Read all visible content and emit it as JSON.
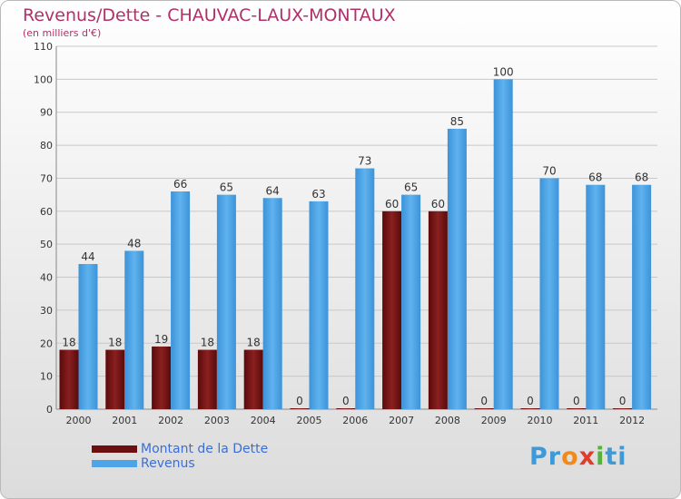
{
  "title": "Revenus/Dette - CHAUVAC-LAUX-MONTAUX",
  "subtitle": "(en milliers d'€)",
  "colors": {
    "title": "#b0306a",
    "debt": "#7a1616",
    "revenue": "#4da4e6",
    "legend_text": "#3b6ed6"
  },
  "logo": {
    "text": "Proxiti",
    "letters": [
      "P",
      "r",
      "o",
      "x",
      "i",
      "t",
      "i"
    ],
    "colors": [
      "#3d9ad6",
      "#3d9ad6",
      "#f08a1c",
      "#e23b2b",
      "#56b23a",
      "#3d9ad6",
      "#3d9ad6"
    ]
  },
  "legend": {
    "position": "bottom-left",
    "items": [
      {
        "label": "Montant de la Dette",
        "color": "#6b0f0f"
      },
      {
        "label": "Revenus",
        "color": "#4da4e6"
      }
    ]
  },
  "chart_data": {
    "type": "bar",
    "categories": [
      "2000",
      "2001",
      "2002",
      "2003",
      "2004",
      "2005",
      "2006",
      "2007",
      "2008",
      "2009",
      "2010",
      "2011",
      "2012"
    ],
    "series": [
      {
        "name": "Montant de la Dette",
        "values": [
          18,
          18,
          19,
          18,
          18,
          0,
          0,
          60,
          60,
          0,
          0,
          0,
          0
        ]
      },
      {
        "name": "Revenus",
        "values": [
          44,
          48,
          66,
          65,
          64,
          63,
          73,
          65,
          85,
          100,
          70,
          68,
          68
        ]
      }
    ],
    "title": "Revenus/Dette - CHAUVAC-LAUX-MONTAUX",
    "ylabel": "(en milliers d'€)",
    "xlabel": "",
    "ylim": [
      0,
      110
    ],
    "yticks": [
      0,
      10,
      20,
      30,
      40,
      50,
      60,
      70,
      80,
      90,
      100,
      110
    ],
    "grid": true,
    "legend_position": "bottom-left"
  }
}
